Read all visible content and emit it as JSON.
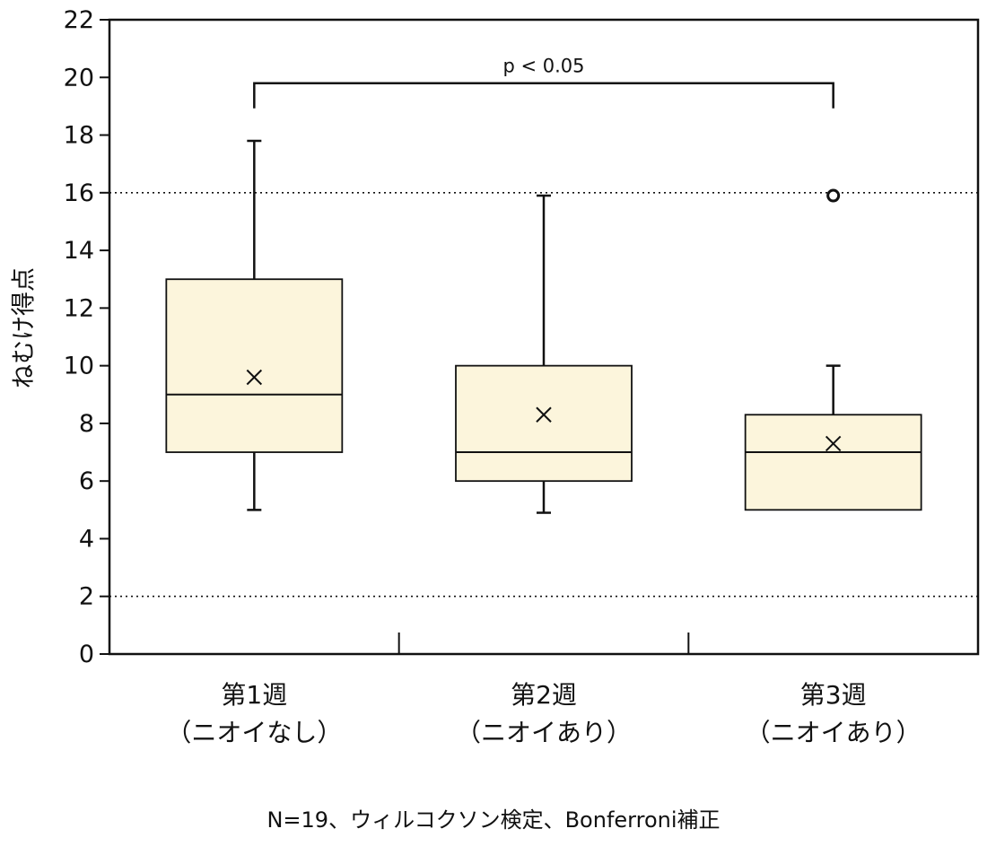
{
  "chart_data": {
    "type": "box",
    "ylabel": "ねむけ得点",
    "ylim": [
      0,
      22
    ],
    "yticks": [
      0,
      2,
      4,
      6,
      8,
      10,
      12,
      14,
      16,
      18,
      20,
      22
    ],
    "reference_lines": [
      2,
      16
    ],
    "categories": [
      {
        "line1": "第1週",
        "line2": "（ニオイなし）"
      },
      {
        "line1": "第2週",
        "line2": "（ニオイあり）"
      },
      {
        "line1": "第3週",
        "line2": "（ニオイあり）"
      }
    ],
    "boxes": [
      {
        "whisker_low": 5,
        "q1": 7,
        "median": 9,
        "q3": 13,
        "whisker_high": 17.8,
        "mean": 9.6,
        "outliers": []
      },
      {
        "whisker_low": 4.9,
        "q1": 6,
        "median": 7,
        "q3": 10,
        "whisker_high": 15.9,
        "mean": 8.3,
        "outliers": []
      },
      {
        "whisker_low": 5,
        "q1": 5,
        "median": 7,
        "q3": 8.3,
        "whisker_high": 10,
        "mean": 7.3,
        "outliers": [
          15.9
        ]
      }
    ],
    "significance": {
      "from": 0,
      "to": 2,
      "label": "p < 0.05",
      "y": 19.8
    },
    "box_color": "#fcf5dc",
    "line_color": "#111111"
  },
  "footnote": "N=19、ウィルコクソン検定、Bonferroni補正"
}
